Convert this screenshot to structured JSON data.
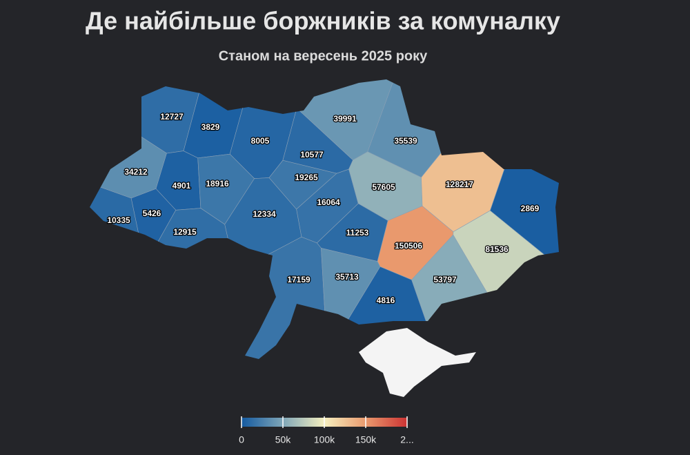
{
  "chart_data": {
    "type": "choropleth",
    "title": "Де найбільше боржників за комуналку",
    "subtitle": "Станом на вересень 2025 року",
    "values": [
      12727,
      3829,
      8005,
      10577,
      39991,
      35539,
      34212,
      4901,
      18916,
      19265,
      16064,
      57605,
      128217,
      2869,
      10335,
      5426,
      12915,
      12334,
      11253,
      150506,
      81536,
      17159,
      35713,
      53797,
      4816
    ],
    "colorscale": [
      [
        0,
        "#145aa0"
      ],
      [
        0.25,
        "#7fa6b8"
      ],
      [
        0.5,
        "#f5efbf"
      ],
      [
        0.75,
        "#e99a6e"
      ],
      [
        1,
        "#cc3333"
      ]
    ],
    "clim": [
      0,
      200000
    ],
    "cticks": [
      0,
      {
        "value": 50000,
        "label": "50k"
      },
      {
        "value": 100000,
        "label": "100k"
      },
      {
        "value": 150000,
        "label": "150k"
      },
      {
        "value": 200000,
        "label": "2..."
      }
    ]
  }
}
